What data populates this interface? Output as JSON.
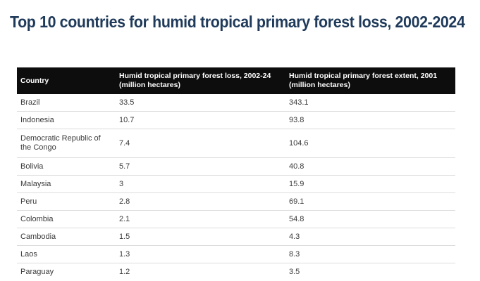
{
  "title": "Top 10 countries for humid tropical primary forest loss, 2002-2024",
  "table": {
    "headers": [
      "Country",
      "Humid tropical primary forest loss, 2002-24 (million hectares)",
      "Humid tropical primary forest extent, 2001 (million hectares)"
    ],
    "rows": [
      [
        "Brazil",
        "33.5",
        "343.1"
      ],
      [
        "Indonesia",
        "10.7",
        "93.8"
      ],
      [
        "Democratic Republic of the Congo",
        "7.4",
        "104.6"
      ],
      [
        "Bolivia",
        "5.7",
        "40.8"
      ],
      [
        "Malaysia",
        "3",
        "15.9"
      ],
      [
        "Peru",
        "2.8",
        "69.1"
      ],
      [
        "Colombia",
        "2.1",
        "54.8"
      ],
      [
        "Cambodia",
        "1.5",
        "4.3"
      ],
      [
        "Laos",
        "1.3",
        "8.3"
      ],
      [
        "Paraguay",
        "1.2",
        "3.5"
      ]
    ]
  },
  "colors": {
    "title": "#1f3a5a",
    "header_background": "#0d0d0d",
    "header_text": "#ffffff",
    "row_divider": "#dcdcdc"
  },
  "chart_data": {
    "type": "table",
    "title": "Top 10 countries for humid tropical primary forest loss, 2002-2024",
    "columns": [
      "Country",
      "Humid tropical primary forest loss, 2002-24 (million hectares)",
      "Humid tropical primary forest extent, 2001 (million hectares)"
    ],
    "categories": [
      "Brazil",
      "Indonesia",
      "Democratic Republic of the Congo",
      "Bolivia",
      "Malaysia",
      "Peru",
      "Colombia",
      "Cambodia",
      "Laos",
      "Paraguay"
    ],
    "series": [
      {
        "name": "Humid tropical primary forest loss, 2002-24 (million hectares)",
        "values": [
          33.5,
          10.7,
          7.4,
          5.7,
          3,
          2.8,
          2.1,
          1.5,
          1.3,
          1.2
        ]
      },
      {
        "name": "Humid tropical primary forest extent, 2001 (million hectares)",
        "values": [
          343.1,
          93.8,
          104.6,
          40.8,
          15.9,
          69.1,
          54.8,
          4.3,
          8.3,
          3.5
        ]
      }
    ]
  }
}
